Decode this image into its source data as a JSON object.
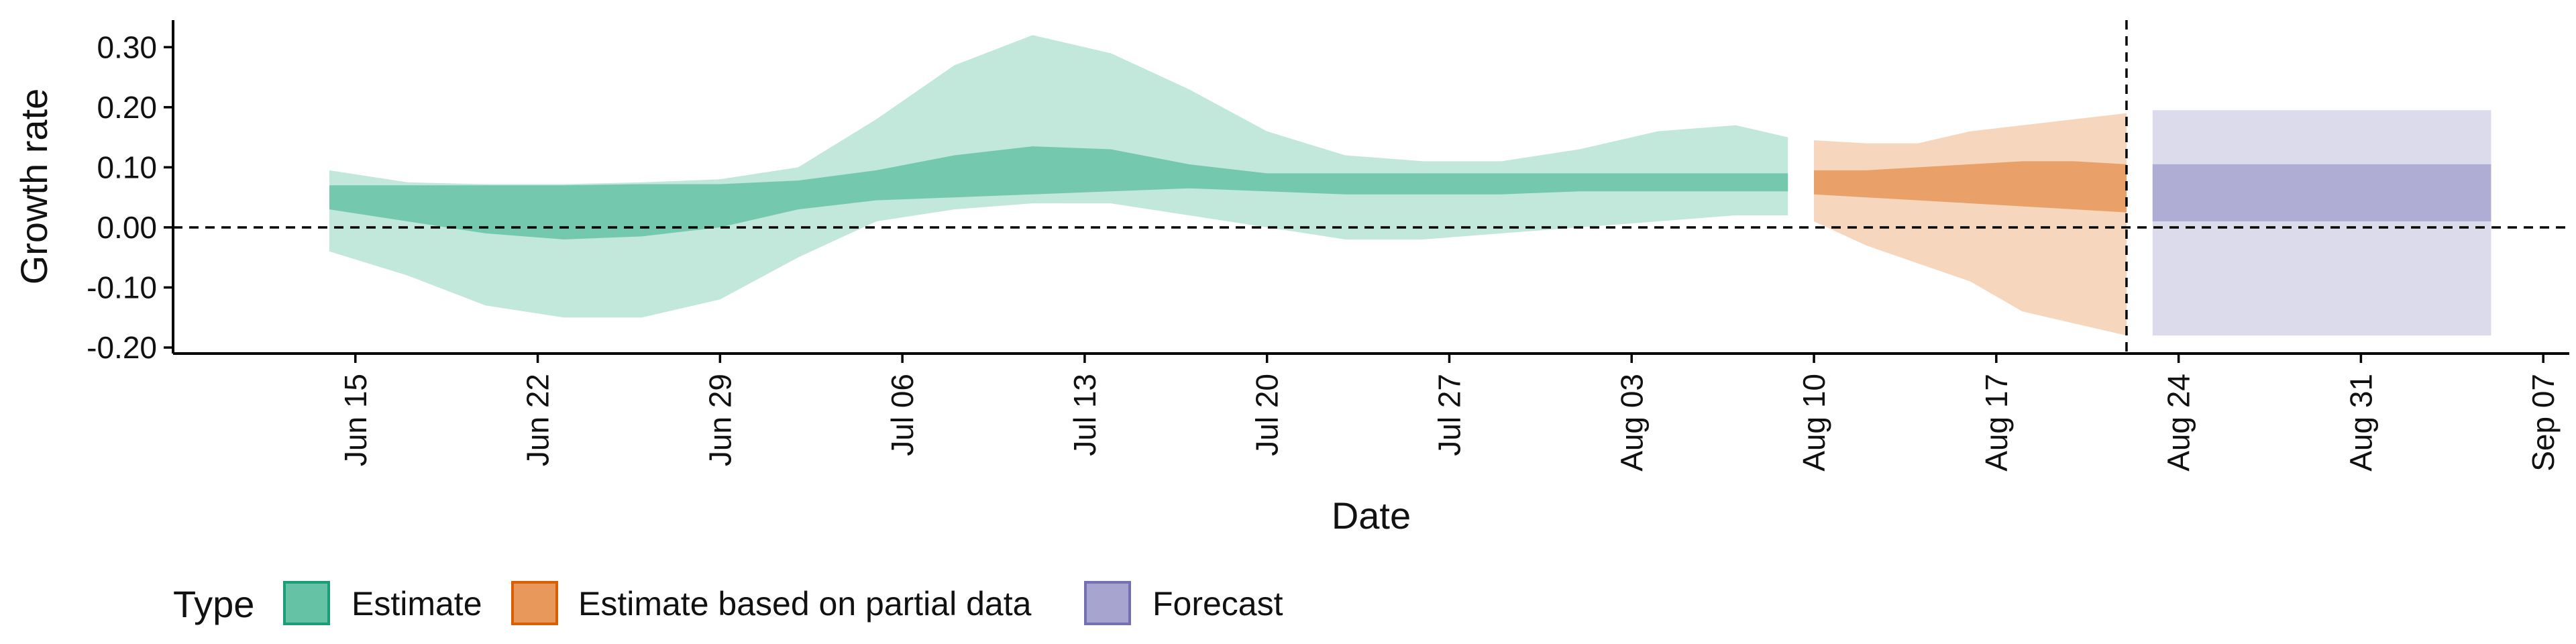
{
  "chart_data": {
    "type": "area",
    "xlabel": "Date",
    "ylabel": "Growth rate",
    "ylim": [
      -0.21,
      0.345
    ],
    "xlim": [
      "2020-06-08",
      "2020-09-08"
    ],
    "y_ticks": [
      {
        "value": -0.2,
        "label": "-0.20"
      },
      {
        "value": -0.1,
        "label": "-0.10"
      },
      {
        "value": 0.0,
        "label": "0.00"
      },
      {
        "value": 0.1,
        "label": "0.10"
      },
      {
        "value": 0.2,
        "label": "0.20"
      },
      {
        "value": 0.3,
        "label": "0.30"
      }
    ],
    "x_ticks": [
      {
        "date": "2020-06-15",
        "label": "Jun 15"
      },
      {
        "date": "2020-06-22",
        "label": "Jun 22"
      },
      {
        "date": "2020-06-29",
        "label": "Jun 29"
      },
      {
        "date": "2020-07-06",
        "label": "Jul 06"
      },
      {
        "date": "2020-07-13",
        "label": "Jul 13"
      },
      {
        "date": "2020-07-20",
        "label": "Jul 20"
      },
      {
        "date": "2020-07-27",
        "label": "Jul 27"
      },
      {
        "date": "2020-08-03",
        "label": "Aug 03"
      },
      {
        "date": "2020-08-10",
        "label": "Aug 10"
      },
      {
        "date": "2020-08-17",
        "label": "Aug 17"
      },
      {
        "date": "2020-08-24",
        "label": "Aug 24"
      },
      {
        "date": "2020-08-31",
        "label": "Aug 31"
      },
      {
        "date": "2020-09-07",
        "label": "Sep 07"
      }
    ],
    "reference_lines": {
      "horizontal_y": 0.0,
      "vertical_date": "2020-08-22",
      "style": "dashed"
    },
    "grid": false,
    "legend": {
      "title": "Type",
      "position": "bottom-left",
      "entries": [
        {
          "label": "Estimate",
          "fill": "#66c2a5",
          "stroke": "#1b9e77"
        },
        {
          "label": "Estimate based on partial data",
          "fill": "#e8985a",
          "stroke": "#d95f02"
        },
        {
          "label": "Forecast",
          "fill": "#a8a4d0",
          "stroke": "#7570b3"
        }
      ]
    },
    "series": [
      {
        "name": "Estimate",
        "color": "#66c2a5",
        "x": [
          "2020-06-14",
          "2020-06-17",
          "2020-06-20",
          "2020-06-23",
          "2020-06-26",
          "2020-06-29",
          "2020-07-02",
          "2020-07-05",
          "2020-07-08",
          "2020-07-11",
          "2020-07-14",
          "2020-07-17",
          "2020-07-20",
          "2020-07-23",
          "2020-07-26",
          "2020-07-29",
          "2020-08-01",
          "2020-08-04",
          "2020-08-07",
          "2020-08-09"
        ],
        "lower_90": [
          -0.04,
          -0.08,
          -0.13,
          -0.15,
          -0.15,
          -0.12,
          -0.05,
          0.01,
          0.03,
          0.04,
          0.04,
          0.02,
          0.0,
          -0.02,
          -0.02,
          -0.01,
          0.0,
          0.01,
          0.02,
          0.02
        ],
        "upper_90": [
          0.095,
          0.075,
          0.072,
          0.072,
          0.075,
          0.08,
          0.1,
          0.18,
          0.27,
          0.32,
          0.29,
          0.23,
          0.16,
          0.12,
          0.11,
          0.11,
          0.13,
          0.16,
          0.17,
          0.15
        ],
        "lower_50": [
          0.03,
          0.01,
          -0.01,
          -0.02,
          -0.015,
          0.0,
          0.03,
          0.045,
          0.05,
          0.055,
          0.06,
          0.065,
          0.06,
          0.055,
          0.055,
          0.055,
          0.06,
          0.06,
          0.06,
          0.06
        ],
        "upper_50": [
          0.07,
          0.07,
          0.07,
          0.07,
          0.072,
          0.072,
          0.078,
          0.095,
          0.12,
          0.135,
          0.13,
          0.105,
          0.09,
          0.09,
          0.09,
          0.09,
          0.09,
          0.09,
          0.09,
          0.09
        ]
      },
      {
        "name": "Estimate based on partial data",
        "color": "#e8985a",
        "x": [
          "2020-08-10",
          "2020-08-12",
          "2020-08-14",
          "2020-08-16",
          "2020-08-18",
          "2020-08-20",
          "2020-08-22"
        ],
        "lower_90": [
          0.01,
          -0.03,
          -0.06,
          -0.09,
          -0.14,
          -0.16,
          -0.18
        ],
        "upper_90": [
          0.145,
          0.14,
          0.14,
          0.16,
          0.17,
          0.18,
          0.19
        ],
        "lower_50": [
          0.055,
          0.05,
          0.045,
          0.04,
          0.035,
          0.03,
          0.025
        ],
        "upper_50": [
          0.095,
          0.095,
          0.1,
          0.105,
          0.11,
          0.11,
          0.105
        ]
      },
      {
        "name": "Forecast",
        "color": "#a8a4d0",
        "x": [
          "2020-08-23",
          "2020-09-05"
        ],
        "lower_90": [
          -0.18,
          -0.18
        ],
        "upper_90": [
          0.195,
          0.195
        ],
        "lower_50": [
          0.01,
          0.01
        ],
        "upper_50": [
          0.105,
          0.105
        ]
      }
    ]
  }
}
